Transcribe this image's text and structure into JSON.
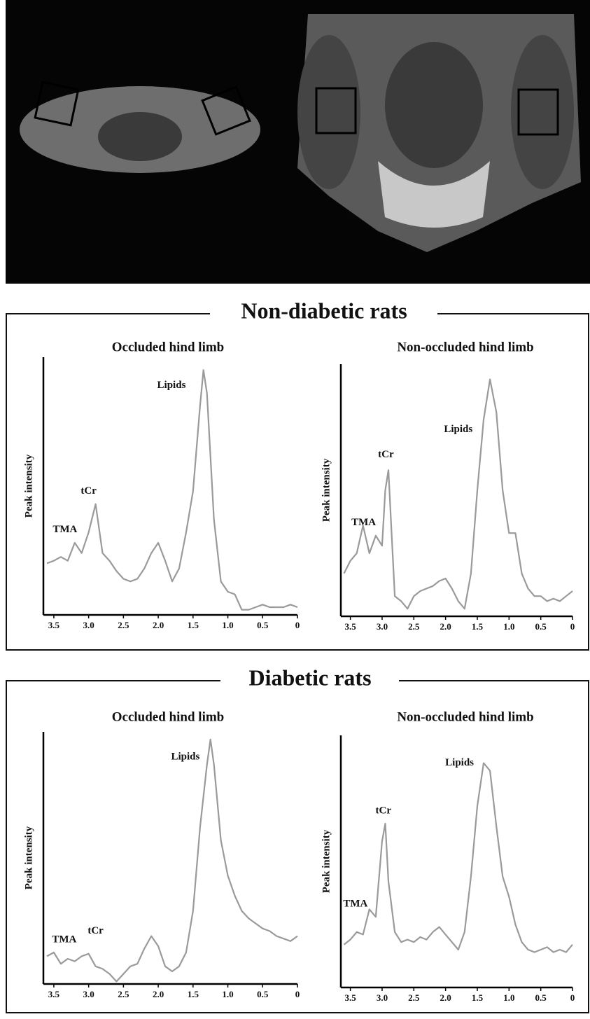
{
  "section_titles": [
    "Non-diabetic rats",
    "Diabetic rats"
  ],
  "chart_data": [
    {
      "type": "line",
      "title": "Occluded hind limb",
      "y_label": "Peak intensity",
      "color": "#9a9a9a",
      "xlim": [
        3.65,
        0
      ],
      "ylim": [
        0,
        100
      ],
      "xticks": [
        3.5,
        {
          "value": 3,
          "label": "3.0"
        },
        2.5,
        {
          "value": 2,
          "label": "2.0"
        },
        1.5,
        {
          "value": 1,
          "label": "1.0"
        },
        0.5,
        0
      ],
      "x": [
        3.6,
        3.5,
        3.4,
        3.3,
        3.2,
        3.1,
        3.0,
        2.9,
        2.8,
        2.7,
        2.6,
        2.5,
        2.4,
        2.3,
        2.2,
        2.1,
        2.0,
        1.9,
        1.8,
        1.7,
        1.6,
        1.5,
        1.4,
        1.35,
        1.3,
        1.2,
        1.1,
        1.0,
        0.9,
        0.8,
        0.7,
        0.6,
        0.5,
        0.4,
        0.3,
        0.2,
        0.1,
        0
      ],
      "values": [
        20,
        21,
        22.5,
        21,
        28,
        24,
        32,
        43,
        24,
        21,
        17,
        14,
        13,
        14,
        18,
        24,
        28,
        21,
        13,
        18,
        32,
        48,
        81,
        95,
        86,
        37,
        13,
        9,
        8,
        2,
        2,
        3,
        4,
        3,
        3,
        3,
        4,
        3
      ],
      "annotations": [
        {
          "text": "TMA",
          "x": 3.34,
          "y": 33
        },
        {
          "text": "tCr",
          "x": 3.0,
          "y": 48
        },
        {
          "text": "Lipids",
          "x": 1.81,
          "y": 89
        }
      ]
    },
    {
      "type": "line",
      "title": "Non-occluded hind limb",
      "y_label": "Peak intensity",
      "color": "#9a9a9a",
      "xlim": [
        3.65,
        0
      ],
      "ylim": [
        0,
        100
      ],
      "xticks": [
        3.5,
        {
          "value": 3,
          "label": "3.0"
        },
        2.5,
        {
          "value": 2,
          "label": "2.0"
        },
        1.5,
        {
          "value": 1,
          "label": "1.0"
        },
        0.5,
        0
      ],
      "x": [
        3.6,
        3.5,
        3.4,
        3.3,
        3.2,
        3.1,
        3.0,
        2.95,
        2.9,
        2.85,
        2.8,
        2.7,
        2.6,
        2.5,
        2.4,
        2.3,
        2.2,
        2.1,
        2.0,
        1.9,
        1.8,
        1.7,
        1.6,
        1.5,
        1.4,
        1.3,
        1.2,
        1.1,
        1.0,
        0.9,
        0.8,
        0.7,
        0.6,
        0.5,
        0.4,
        0.3,
        0.2,
        0.1,
        0
      ],
      "values": [
        17,
        22,
        25,
        36,
        25,
        32,
        28,
        50,
        58,
        33,
        8,
        6,
        3,
        8,
        10,
        11,
        12,
        14,
        15,
        11,
        6,
        3,
        17,
        50,
        78,
        94,
        81,
        50,
        33,
        33,
        17,
        11,
        8,
        8,
        6,
        7,
        6,
        8,
        10
      ],
      "annotations": [
        {
          "text": "TMA",
          "x": 3.29,
          "y": 37
        },
        {
          "text": "tCr",
          "x": 2.94,
          "y": 64
        },
        {
          "text": "Lipids",
          "x": 1.8,
          "y": 74
        }
      ]
    },
    {
      "type": "line",
      "title": "Occluded hind limb",
      "y_label": "Peak intensity",
      "color": "#9a9a9a",
      "xlim": [
        3.65,
        0
      ],
      "ylim": [
        0,
        100
      ],
      "xticks": [
        3.5,
        {
          "value": 3,
          "label": "3.0"
        },
        2.5,
        {
          "value": 2,
          "label": "2.0"
        },
        1.5,
        {
          "value": 1,
          "label": "1.0"
        },
        0.5,
        0
      ],
      "x": [
        3.6,
        3.5,
        3.4,
        3.3,
        3.2,
        3.1,
        3.0,
        2.9,
        2.8,
        2.7,
        2.6,
        2.5,
        2.4,
        2.3,
        2.2,
        2.1,
        2.0,
        1.9,
        1.8,
        1.7,
        1.6,
        1.5,
        1.4,
        1.3,
        1.25,
        1.2,
        1.1,
        1.0,
        0.9,
        0.8,
        0.7,
        0.6,
        0.5,
        0.4,
        0.3,
        0.2,
        0.1,
        0
      ],
      "values": [
        11,
        12.5,
        8,
        10,
        9,
        11,
        12,
        7,
        6,
        4,
        1,
        4,
        7,
        8,
        14,
        19,
        15,
        7,
        5,
        7,
        12.5,
        29,
        62,
        87,
        97,
        87,
        57,
        43,
        35,
        29,
        26,
        24,
        22,
        21,
        19,
        18,
        17,
        19
      ],
      "annotations": [
        {
          "text": "TMA",
          "x": 3.35,
          "y": 17.5
        },
        {
          "text": "tCr",
          "x": 2.9,
          "y": 21
        },
        {
          "text": "Lipids",
          "x": 1.61,
          "y": 90
        }
      ]
    },
    {
      "type": "line",
      "title": "Non-occluded hind limb",
      "y_label": "Peak intensity",
      "color": "#9a9a9a",
      "xlim": [
        3.65,
        0
      ],
      "ylim": [
        0,
        100
      ],
      "xticks": [
        3.5,
        {
          "value": 3,
          "label": "3.0"
        },
        2.5,
        {
          "value": 2,
          "label": "2.0"
        },
        1.5,
        {
          "value": 1,
          "label": "1.0"
        },
        0.5,
        0
      ],
      "x": [
        3.6,
        3.5,
        3.4,
        3.3,
        3.2,
        3.1,
        3.0,
        2.95,
        2.9,
        2.8,
        2.7,
        2.6,
        2.5,
        2.4,
        2.3,
        2.2,
        2.1,
        2.0,
        1.9,
        1.8,
        1.7,
        1.6,
        1.5,
        1.4,
        1.3,
        1.2,
        1.1,
        1.0,
        0.9,
        0.8,
        0.7,
        0.6,
        0.5,
        0.4,
        0.3,
        0.2,
        0.1,
        0
      ],
      "values": [
        17,
        19,
        22,
        21,
        31,
        28,
        58,
        65,
        42,
        22,
        18,
        19,
        18,
        20,
        19,
        22,
        24,
        21,
        18,
        15,
        22,
        44,
        72,
        89,
        86,
        64,
        44,
        36,
        25,
        18,
        15,
        14,
        15,
        16,
        14,
        15,
        14,
        17
      ],
      "annotations": [
        {
          "text": "TMA",
          "x": 3.42,
          "y": 33
        },
        {
          "text": "tCr",
          "x": 2.98,
          "y": 70
        },
        {
          "text": "Lipids",
          "x": 1.78,
          "y": 89
        }
      ]
    }
  ]
}
